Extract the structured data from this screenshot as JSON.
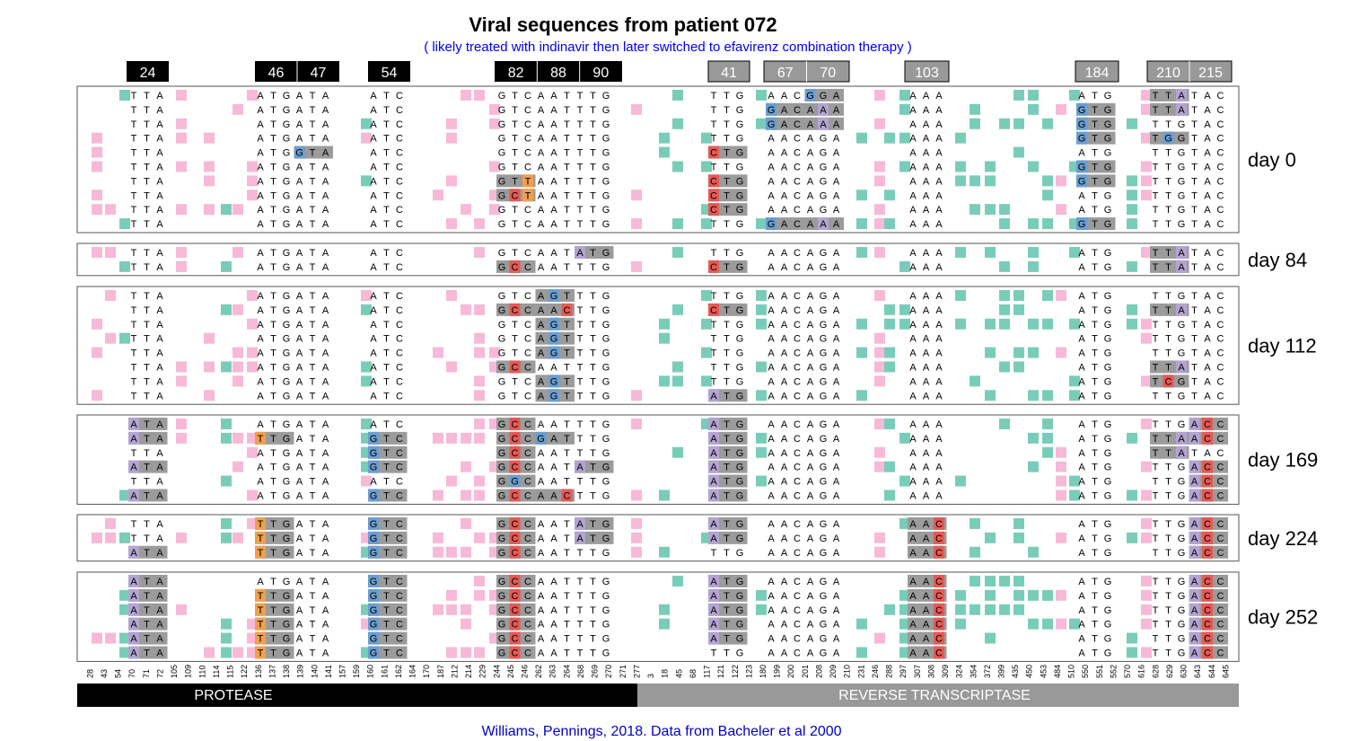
{
  "title": "Viral sequences from patient 072",
  "subtitle": "( likely treated with indinavir then later switched to efavirenz combination therapy )",
  "caption": "Williams, Pennings, 2018. Data from Bacheler et al 2000",
  "colors": {
    "protease_bar": "#000000",
    "rt_bar": "#999999",
    "synonymous_pink": "#f7b9d8",
    "rt_teal": "#79cdb8",
    "A": "#b3a4d1",
    "C": "#e45a55",
    "G": "#6b9ed0",
    "T": "#f0a04d",
    "codon_box": "#9b9b9b"
  },
  "chart_data": {
    "type": "table",
    "regions": [
      {
        "name": "PROTEASE",
        "positions": [
          "28",
          "43",
          "54",
          "70",
          "71",
          "72",
          "105",
          "109",
          "110",
          "114",
          "115",
          "122",
          "136",
          "137",
          "138",
          "139",
          "140",
          "141",
          "157",
          "159",
          "160",
          "161",
          "162",
          "164",
          "170",
          "187",
          "212",
          "214",
          "229",
          "244",
          "245",
          "246",
          "262",
          "263",
          "264",
          "268",
          "269",
          "270",
          "271"
        ]
      },
      {
        "name": "REVERSE TRANSCRIPTASE",
        "positions": [
          "277",
          "3",
          "18",
          "45",
          "68",
          "117",
          "121",
          "122",
          "123",
          "180",
          "199",
          "200",
          "201",
          "208",
          "209",
          "210",
          "231",
          "246",
          "288",
          "297",
          "307",
          "308",
          "309",
          "324",
          "354",
          "372",
          "399",
          "435",
          "450",
          "453",
          "484",
          "510",
          "550",
          "551",
          "552",
          "570",
          "616",
          "628",
          "629",
          "630",
          "643",
          "644",
          "645"
        ]
      }
    ],
    "codon_headers": [
      {
        "region": "PROTEASE",
        "labels": [
          "24"
        ]
      },
      {
        "region": "PROTEASE",
        "labels": [
          "46",
          "47"
        ]
      },
      {
        "region": "PROTEASE",
        "labels": [
          "54"
        ]
      },
      {
        "region": "PROTEASE",
        "labels": [
          "82",
          "88",
          "90"
        ]
      },
      {
        "region": "REVERSE TRANSCRIPTASE",
        "labels": [
          "41"
        ]
      },
      {
        "region": "REVERSE TRANSCRIPTASE",
        "labels": [
          "67",
          "70"
        ]
      },
      {
        "region": "REVERSE TRANSCRIPTASE",
        "labels": [
          "103"
        ]
      },
      {
        "region": "REVERSE TRANSCRIPTASE",
        "labels": [
          "184"
        ]
      },
      {
        "region": "REVERSE TRANSCRIPTASE",
        "labels": [
          "210",
          "215"
        ]
      }
    ],
    "codon_columns": [
      "pr24",
      "pr46_47",
      "pr54",
      "pr82_90",
      "rt41",
      "rt67_70",
      "rt103",
      "rt184",
      "rt210_215"
    ],
    "timepoints": [
      {
        "label": "day 0",
        "sequences": [
          {
            "codons": [
              "TTA",
              "ATGATA",
              "ATC",
              "GTCAATTTG",
              "TTG",
              "AACGGA",
              "AAA",
              "ATG",
              "TTATAC"
            ]
          },
          {
            "codons": [
              "TTA",
              "ATGATA",
              "ATC",
              "GTCAATTTG",
              "TTG",
              "GACAAA",
              "AAA",
              "GTG",
              "TTATAC"
            ]
          },
          {
            "codons": [
              "TTA",
              "ATGATA",
              "ATC",
              "GTCAATTTG",
              "TTG",
              "GACAAA",
              "AAA",
              "GTG",
              "TTGTAC"
            ]
          },
          {
            "codons": [
              "TTA",
              "ATGATA",
              "ATC",
              "GTCAATTTG",
              "TTG",
              "AACAGA",
              "AAA",
              "GTG",
              "TGGTAC"
            ]
          },
          {
            "codons": [
              "TTA",
              "ATGGTA",
              "ATC",
              "GTCAATTTG",
              "CTG",
              "AACAGA",
              "AAA",
              "ATG",
              "TTGTAC"
            ]
          },
          {
            "codons": [
              "TTA",
              "ATGATA",
              "ATC",
              "GTCAATTTG",
              "TTG",
              "AACAGA",
              "AAA",
              "GTG",
              "TTGTAC"
            ]
          },
          {
            "codons": [
              "TTA",
              "ATGATA",
              "ATC",
              "GTTAATTTG",
              "CTG",
              "AACAGA",
              "AAA",
              "GTG",
              "TTGTAC"
            ]
          },
          {
            "codons": [
              "TTA",
              "ATGATA",
              "ATC",
              "GCTAATTTG",
              "CTG",
              "AACAGA",
              "AAA",
              "ATG",
              "TTGTAC"
            ]
          },
          {
            "codons": [
              "TTA",
              "ATGATA",
              "ATC",
              "GTCAATTTG",
              "CTG",
              "AACAGA",
              "AAA",
              "ATG",
              "TTGTAC"
            ]
          },
          {
            "codons": [
              "TTA",
              "ATGATA",
              "ATC",
              "GTCAATTTG",
              "TTG",
              "GACAAA",
              "AAA",
              "GTG",
              "TTGTAC"
            ]
          }
        ]
      },
      {
        "label": "day 84",
        "sequences": [
          {
            "codons": [
              "TTA",
              "ATGATA",
              "ATC",
              "GTCAATATG",
              "TTG",
              "AACAGA",
              "AAA",
              "ATG",
              "TTATAC"
            ]
          },
          {
            "codons": [
              "TTA",
              "ATGATA",
              "ATC",
              "GCCAATTTG",
              "CTG",
              "AACAGA",
              "AAA",
              "ATG",
              "TTATAC"
            ]
          }
        ]
      },
      {
        "label": "day 112",
        "sequences": [
          {
            "codons": [
              "TTA",
              "ATGATA",
              "ATC",
              "GTCAGTTTG",
              "TTG",
              "AACAGA",
              "AAA",
              "ATG",
              "TTGTAC"
            ]
          },
          {
            "codons": [
              "TTA",
              "ATGATA",
              "ATC",
              "GCCAACTTG",
              "CTG",
              "AACAGA",
              "AAA",
              "ATG",
              "TTATAC"
            ]
          },
          {
            "codons": [
              "TTA",
              "ATGATA",
              "ATC",
              "GTCAGTTTG",
              "TTG",
              "AACAGA",
              "AAA",
              "ATG",
              "TTGTAC"
            ]
          },
          {
            "codons": [
              "TTA",
              "ATGATA",
              "ATC",
              "GTCAGTTTG",
              "TTG",
              "AACAGA",
              "AAA",
              "ATG",
              "TTGTAC"
            ]
          },
          {
            "codons": [
              "TTA",
              "ATGATA",
              "ATC",
              "GTCAGTTTG",
              "TTG",
              "AACAGA",
              "AAA",
              "ATG",
              "TTGTAC"
            ]
          },
          {
            "codons": [
              "TTA",
              "ATGATA",
              "ATC",
              "GCCAATTTG",
              "TTG",
              "AACAGA",
              "AAA",
              "ATG",
              "TTATAC"
            ]
          },
          {
            "codons": [
              "TTA",
              "ATGATA",
              "ATC",
              "GTCAGTTTG",
              "TTG",
              "AACAGA",
              "AAA",
              "ATG",
              "TCGTAC"
            ]
          },
          {
            "codons": [
              "TTA",
              "ATGATA",
              "ATC",
              "GTCAGTTTG",
              "ATG",
              "AACAGA",
              "AAA",
              "ATG",
              "TTGTAC"
            ]
          }
        ]
      },
      {
        "label": "day 169",
        "sequences": [
          {
            "codons": [
              "ATA",
              "ATGATA",
              "ATC",
              "GCCAATTTG",
              "ATG",
              "AACAGA",
              "AAA",
              "ATG",
              "TTGACC"
            ]
          },
          {
            "codons": [
              "ATA",
              "TTGATA",
              "GTC",
              "GCCGATTTG",
              "ATG",
              "AACAGA",
              "AAA",
              "ATG",
              "TTAACC"
            ]
          },
          {
            "codons": [
              "TTA",
              "ATGATA",
              "GTC",
              "GCCAATTTG",
              "ATG",
              "AACAGA",
              "AAA",
              "ATG",
              "TTATAC"
            ]
          },
          {
            "codons": [
              "ATA",
              "ATGATA",
              "GTC",
              "GCCAATATG",
              "ATG",
              "AACAGA",
              "AAA",
              "ATG",
              "TTGACC"
            ]
          },
          {
            "codons": [
              "TTA",
              "ATGATA",
              "ATC",
              "GGCAATTTG",
              "ATG",
              "AACAGA",
              "AAA",
              "ATG",
              "TTGACC"
            ]
          },
          {
            "codons": [
              "ATA",
              "ATGATA",
              "GTC",
              "GCCAACTTG",
              "ATG",
              "AACAGA",
              "AAA",
              "ATG",
              "TTGACC"
            ]
          }
        ]
      },
      {
        "label": "day 224",
        "sequences": [
          {
            "codons": [
              "TTA",
              "TTGATA",
              "GTC",
              "GCCAATATG",
              "ATG",
              "AACAGA",
              "AAC",
              "ATG",
              "TTGACC"
            ]
          },
          {
            "codons": [
              "TTA",
              "TTGATA",
              "GTC",
              "GCCAATATG",
              "ATG",
              "AACAGA",
              "AAC",
              "ATG",
              "TTGACC"
            ]
          },
          {
            "codons": [
              "ATA",
              "TTGATA",
              "GTC",
              "GCCAATTTG",
              "TTG",
              "AACAGA",
              "AAC",
              "ATG",
              "TTGACC"
            ]
          }
        ]
      },
      {
        "label": "day 252",
        "sequences": [
          {
            "codons": [
              "ATA",
              "ATGATA",
              "GTC",
              "GCCAATTTG",
              "ATG",
              "AACAGA",
              "AAC",
              "ATG",
              "TTGACC"
            ]
          },
          {
            "codons": [
              "ATA",
              "TTGATA",
              "GTC",
              "GCCAATTTG",
              "ATG",
              "AACAGA",
              "AAC",
              "ATG",
              "TTGACC"
            ]
          },
          {
            "codons": [
              "ATA",
              "TTGATA",
              "GTC",
              "GCCAATTTG",
              "ATG",
              "AACAGA",
              "AAC",
              "ATG",
              "TTGACC"
            ]
          },
          {
            "codons": [
              "ATA",
              "TTGATA",
              "GTC",
              "GCCAATTTG",
              "ATG",
              "AACAGA",
              "AAC",
              "ATG",
              "TTGACC"
            ]
          },
          {
            "codons": [
              "ATA",
              "TTGATA",
              "GTC",
              "GCCAATTTG",
              "ATG",
              "AACAGA",
              "AAC",
              "ATG",
              "TTGACC"
            ]
          },
          {
            "codons": [
              "ATA",
              "TTGATA",
              "GTC",
              "GCCAATTTG",
              "TTG",
              "AACAGA",
              "AAC",
              "ATG",
              "TTGACC"
            ]
          }
        ]
      }
    ]
  }
}
